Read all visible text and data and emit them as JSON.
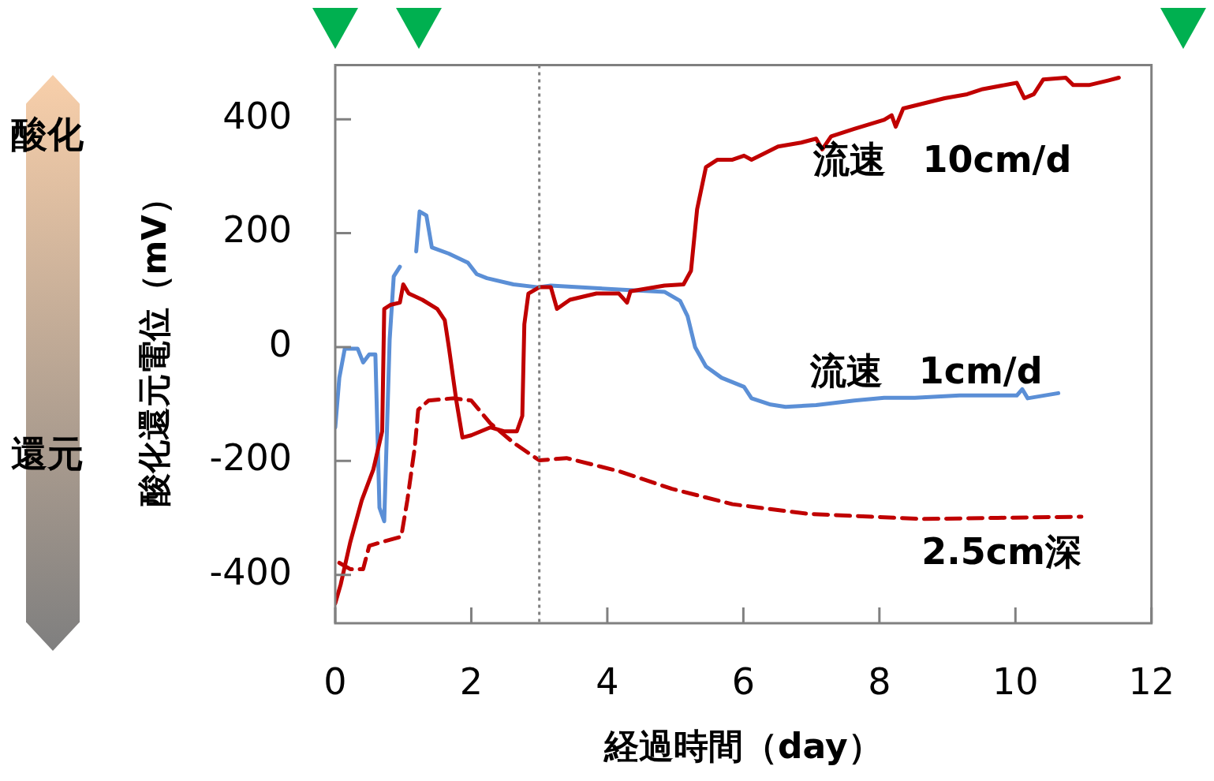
{
  "chart_data": {
    "type": "line",
    "xlabel": "経過時間（day）",
    "ylabel": "酸化還元電位（mV）",
    "xlim": [
      0,
      12
    ],
    "xticks": [
      0,
      2,
      4,
      6,
      8,
      10,
      12
    ],
    "ylim": [
      -485,
      495
    ],
    "yticks": [
      -400,
      -200,
      0,
      200,
      400
    ],
    "grid": false,
    "legend": false,
    "annotations": [
      "酸化",
      "還元"
    ],
    "ref_lines": [
      {
        "axis": "x",
        "value": 3,
        "color": "#808080",
        "line_style": "dotted"
      }
    ],
    "series": [
      {
        "name": "流速　10cm/d",
        "color": "#c00000",
        "line_style": "solid",
        "x": [
          0,
          0.08,
          0.22,
          0.39,
          0.56,
          0.69,
          0.72,
          0.81,
          0.95,
          1.0,
          1.08,
          1.28,
          1.5,
          1.61,
          1.67,
          1.78,
          1.87,
          2.0,
          2.28,
          2.48,
          2.67,
          2.75,
          2.78,
          2.84,
          3.0,
          3.17,
          3.26,
          3.45,
          3.84,
          4.17,
          4.29,
          4.34,
          4.84,
          5.12,
          5.23,
          5.32,
          5.45,
          5.62,
          5.84,
          6.01,
          6.12,
          6.29,
          6.51,
          6.85,
          7.07,
          7.16,
          7.29,
          7.63,
          8.07,
          8.18,
          8.24,
          8.35,
          8.96,
          9.29,
          9.52,
          10.02,
          10.13,
          10.27,
          10.41,
          10.74,
          10.85,
          11.08,
          11.36,
          11.52
        ],
        "values": [
          -450,
          -417,
          -343,
          -269,
          -215,
          -148,
          67,
          74,
          78,
          110,
          94,
          83,
          67,
          47,
          0,
          -94,
          -159,
          -155,
          -141,
          -148,
          -148,
          -121,
          40,
          94,
          105,
          105,
          67,
          83,
          94,
          94,
          78,
          98,
          108,
          110,
          134,
          242,
          316,
          329,
          329,
          336,
          329,
          339,
          352,
          359,
          366,
          347,
          370,
          383,
          399,
          407,
          387,
          419,
          437,
          444,
          453,
          464,
          437,
          444,
          470,
          473,
          460,
          460,
          468,
          473
        ]
      },
      {
        "name": "流速　1cm/d",
        "color": "#5b8fd6",
        "line_style": "solid",
        "x": [
          0,
          0.06,
          0.14,
          0.22,
          0.33,
          0.41,
          0.5,
          0.59,
          0.65,
          0.72,
          0.8,
          0.86,
          0.95,
          1.07,
          1.19,
          1.24,
          1.34,
          1.42,
          1.67,
          1.95,
          2.08,
          2.23,
          2.62,
          2.98,
          3.17,
          4.17,
          4.84,
          5.07,
          5.18,
          5.29,
          5.45,
          5.68,
          6.01,
          6.12,
          6.4,
          6.62,
          7.07,
          7.63,
          8.07,
          8.52,
          9.18,
          9.74,
          10.02,
          10.1,
          10.18,
          10.63
        ],
        "values": [
          -141,
          -54,
          -3,
          -3,
          -3,
          -27,
          -13,
          -13,
          -282,
          -306,
          13,
          124,
          141,
          null,
          168,
          238,
          231,
          175,
          164,
          148,
          128,
          121,
          110,
          105,
          108,
          101,
          97,
          81,
          54,
          0,
          -34,
          -54,
          -70,
          -90,
          -101,
          -105,
          -102,
          -94,
          -89,
          -89,
          -85,
          -85,
          -85,
          -74,
          -90,
          -81
        ]
      },
      {
        "name": "2.5cm深",
        "color": "#c00000",
        "line_style": "dashed",
        "x": [
          0.06,
          0.22,
          0.41,
          0.5,
          0.67,
          0.97,
          1.06,
          1.17,
          1.22,
          1.37,
          1.73,
          2.0,
          2.28,
          2.62,
          3.0,
          3.4,
          4.17,
          4.95,
          5.84,
          6.96,
          8.63,
          9.74,
          10.97
        ],
        "values": [
          -379,
          -390,
          -390,
          -349,
          -343,
          -333,
          -269,
          -175,
          -110,
          -94,
          -90,
          -94,
          -134,
          -168,
          -199,
          -195,
          -218,
          -249,
          -276,
          -293,
          -302,
          -300,
          -298
        ]
      }
    ]
  }
}
